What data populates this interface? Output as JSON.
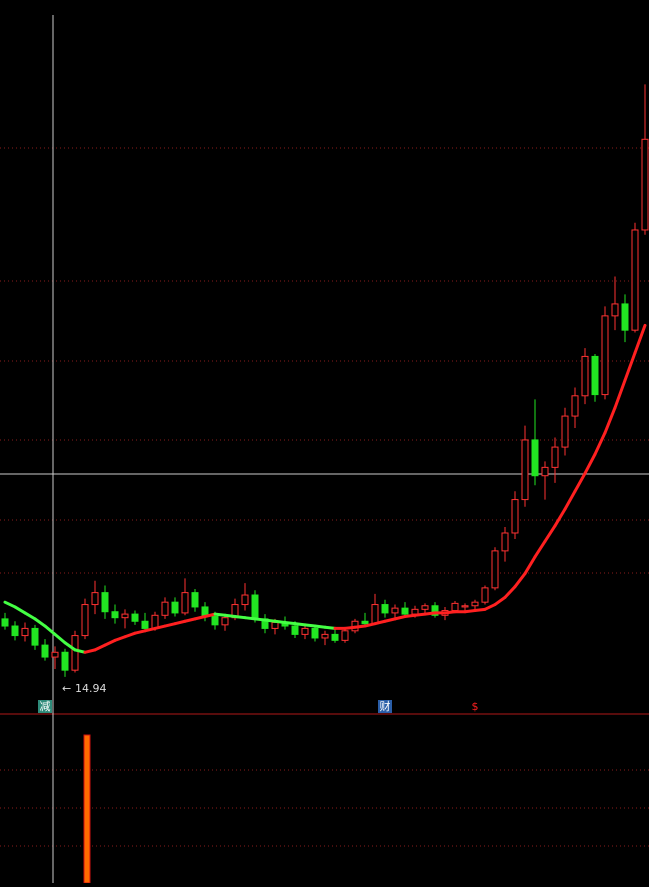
{
  "chart_data": {
    "type": "candlestick",
    "ylim": [
      13,
      70
    ],
    "up_color": "#ff3232",
    "down_color": "#22e622",
    "ma_up_color": "#ff2020",
    "ma_down_color": "#44ff44",
    "open": [
      19.8,
      19.2,
      18.4,
      19.0,
      17.6,
      16.6,
      17.0,
      15.5,
      18.4,
      21.0,
      22.0,
      20.4,
      19.9,
      20.2,
      19.6,
      19.0,
      20.1,
      21.2,
      20.3,
      22.0,
      20.8,
      20.0,
      19.3,
      19.9,
      21.0,
      21.8,
      19.8,
      19.0,
      19.5,
      19.2,
      18.5,
      19.0,
      18.2,
      18.5,
      18.0,
      18.8,
      19.6,
      19.4,
      21.0,
      20.3,
      20.7,
      20.2,
      20.6,
      20.9,
      20.1,
      20.5,
      20.8,
      20.9,
      21.2,
      22.4,
      25.5,
      27.0,
      29.8,
      34.8,
      31.8,
      32.5,
      34.2,
      36.8,
      38.5,
      41.8,
      38.6,
      45.2,
      46.2,
      44.0,
      52.4
    ],
    "high": [
      20.3,
      19.6,
      19.5,
      19.3,
      18.1,
      17.5,
      17.3,
      18.8,
      21.5,
      23.0,
      22.6,
      21.0,
      20.6,
      20.5,
      20.3,
      20.4,
      21.6,
      21.6,
      23.2,
      22.3,
      21.2,
      20.4,
      20.2,
      21.5,
      22.8,
      22.2,
      20.2,
      19.8,
      20.0,
      19.6,
      19.3,
      19.2,
      18.8,
      18.9,
      19.0,
      19.8,
      20.3,
      21.9,
      21.4,
      21.0,
      21.2,
      20.9,
      21.1,
      21.2,
      20.8,
      21.3,
      21.1,
      21.4,
      22.6,
      25.8,
      27.5,
      30.5,
      36.0,
      38.2,
      33.0,
      35.0,
      37.5,
      39.2,
      42.5,
      42.0,
      46.0,
      48.5,
      47.0,
      53.0,
      64.6
    ],
    "low": [
      18.9,
      18.0,
      17.9,
      17.2,
      16.3,
      15.6,
      14.94,
      15.3,
      18.1,
      20.2,
      19.8,
      19.4,
      19.0,
      19.3,
      18.7,
      18.8,
      19.8,
      20.0,
      20.1,
      20.4,
      19.6,
      18.9,
      18.8,
      19.7,
      20.5,
      19.5,
      18.6,
      18.5,
      18.9,
      18.2,
      18.1,
      17.9,
      17.6,
      17.8,
      17.8,
      18.6,
      19.1,
      19.3,
      19.9,
      19.8,
      20.0,
      19.9,
      20.2,
      19.9,
      19.7,
      20.3,
      20.4,
      20.5,
      21.0,
      22.2,
      24.6,
      26.5,
      29.2,
      31.0,
      29.8,
      31.2,
      33.5,
      35.8,
      37.8,
      38.0,
      38.2,
      44.0,
      43.0,
      43.8,
      52.0
    ],
    "close": [
      19.2,
      18.4,
      19.0,
      17.6,
      16.6,
      17.0,
      15.5,
      18.4,
      21.0,
      22.0,
      20.4,
      19.9,
      20.2,
      19.6,
      19.0,
      20.1,
      21.2,
      20.3,
      22.0,
      20.8,
      20.0,
      19.3,
      19.9,
      21.0,
      21.8,
      19.8,
      19.0,
      19.5,
      19.2,
      18.5,
      19.0,
      18.2,
      18.5,
      18.0,
      18.8,
      19.6,
      19.4,
      21.0,
      20.3,
      20.7,
      20.2,
      20.6,
      20.9,
      20.1,
      20.5,
      21.1,
      20.9,
      21.2,
      22.4,
      25.5,
      27.0,
      29.8,
      34.8,
      31.8,
      32.5,
      34.2,
      36.8,
      38.5,
      41.8,
      38.6,
      45.2,
      46.2,
      44.0,
      52.4,
      60.0
    ],
    "ma": [
      21.2,
      20.8,
      20.3,
      19.8,
      19.2,
      18.5,
      17.8,
      17.2,
      17.0,
      17.2,
      17.6,
      18.0,
      18.3,
      18.6,
      18.8,
      19.0,
      19.2,
      19.4,
      19.6,
      19.8,
      20.0,
      20.2,
      20.1,
      20.0,
      19.9,
      19.8,
      19.7,
      19.6,
      19.5,
      19.4,
      19.3,
      19.2,
      19.1,
      19.0,
      19.0,
      19.1,
      19.2,
      19.4,
      19.6,
      19.8,
      20.0,
      20.1,
      20.2,
      20.3,
      20.3,
      20.4,
      20.4,
      20.5,
      20.6,
      21.0,
      21.6,
      22.5,
      23.6,
      25.0,
      26.3,
      27.6,
      29.0,
      30.5,
      32.0,
      33.6,
      35.4,
      37.5,
      39.8,
      42.1,
      44.4
    ],
    "low_label_index": 6,
    "annotations": [
      {
        "text": "减",
        "index": 4,
        "color": "#2e8b7a"
      },
      {
        "text": "财",
        "index": 38,
        "color": "#2a5ea8"
      },
      {
        "text": "$",
        "index": 47,
        "color": "#ff2020"
      }
    ],
    "indicator": {
      "ylim": [
        0,
        1
      ],
      "index": 8,
      "value": 1,
      "color": "#ff6a00"
    }
  }
}
